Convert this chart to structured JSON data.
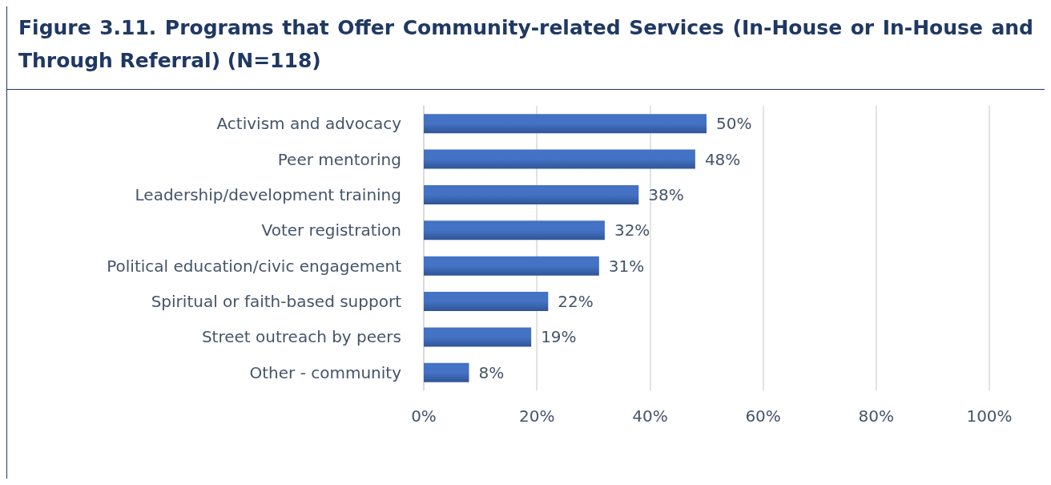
{
  "chart_data": {
    "type": "bar",
    "orientation": "horizontal",
    "title": "Figure 3.11. Programs that Offer Community-related Services (In-House or In-House and Through Referral) (N=118)",
    "categories": [
      "Activism and advocacy",
      "Peer mentoring",
      "Leadership/development training",
      "Voter registration",
      "Political education/civic engagement",
      "Spiritual or faith-based support",
      "Street outreach by peers",
      "Other - community"
    ],
    "values": [
      50,
      48,
      38,
      32,
      31,
      22,
      19,
      8
    ],
    "value_labels": [
      "50%",
      "48%",
      "38%",
      "32%",
      "31%",
      "22%",
      "19%",
      "8%"
    ],
    "color": "#4472c4",
    "xlim": [
      0,
      100
    ],
    "xticks": [
      {
        "value": 0,
        "label": "0%"
      },
      {
        "value": 20,
        "label": "20%"
      },
      {
        "value": 40,
        "label": "40%"
      },
      {
        "value": 60,
        "label": "60%"
      },
      {
        "value": 80,
        "label": "80%"
      },
      {
        "value": 100,
        "label": "100%"
      }
    ],
    "grid": "x"
  }
}
